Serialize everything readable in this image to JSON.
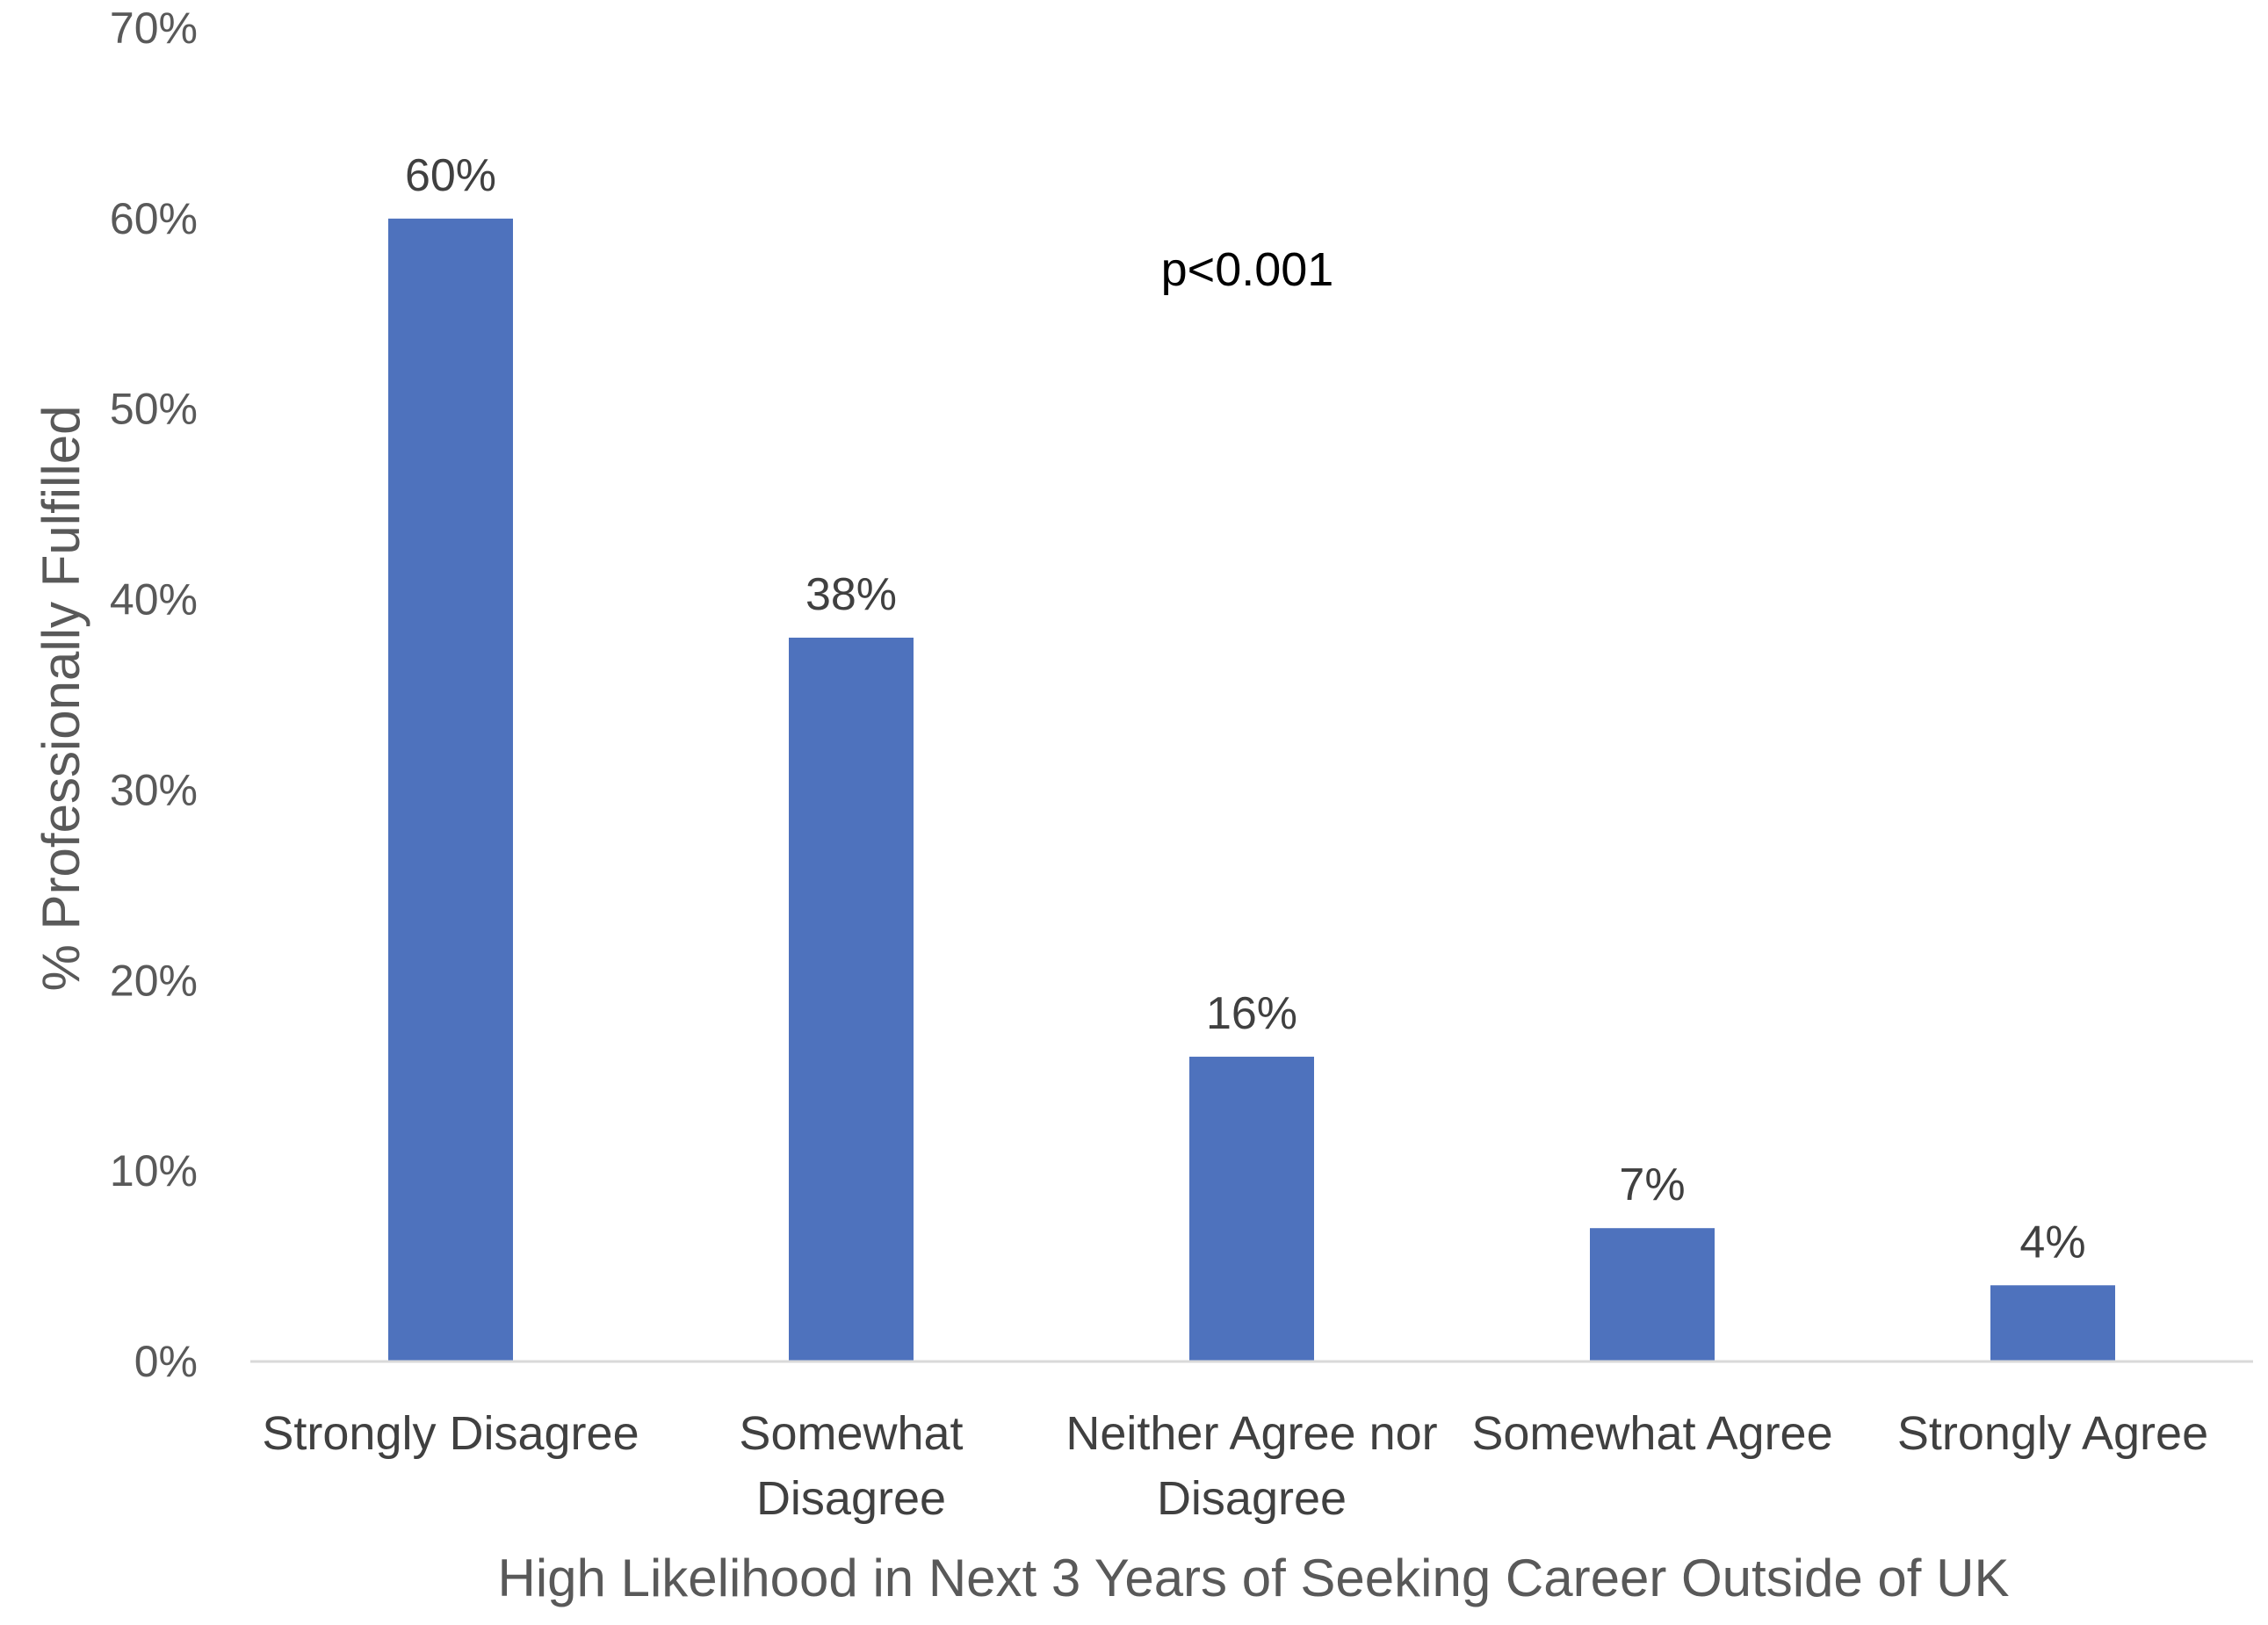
{
  "chart_data": {
    "type": "bar",
    "categories": [
      [
        "Strongly Disagree"
      ],
      [
        "Somewhat",
        "Disagree"
      ],
      [
        "Neither Agree nor",
        "Disagree"
      ],
      [
        "Somewhat Agree"
      ],
      [
        "Strongly Agree"
      ]
    ],
    "values": [
      60,
      38,
      16,
      7,
      4
    ],
    "data_labels": [
      "60%",
      "38%",
      "16%",
      "7%",
      "4%"
    ],
    "yticks": [
      0,
      10,
      20,
      30,
      40,
      50,
      60,
      70
    ],
    "ytick_labels": [
      "0%",
      "10%",
      "20%",
      "30%",
      "40%",
      "50%",
      "60%",
      "70%"
    ],
    "ylim": [
      0,
      70
    ],
    "xlabel": "High Likelihood in Next 3 Years of Seeking Career Outside of UK",
    "ylabel": "% Professionally Fulfilled",
    "annotation": "p<0.001",
    "grid": false,
    "bar_color": "#4e72bd",
    "axis_color": "#d9d9d9"
  }
}
